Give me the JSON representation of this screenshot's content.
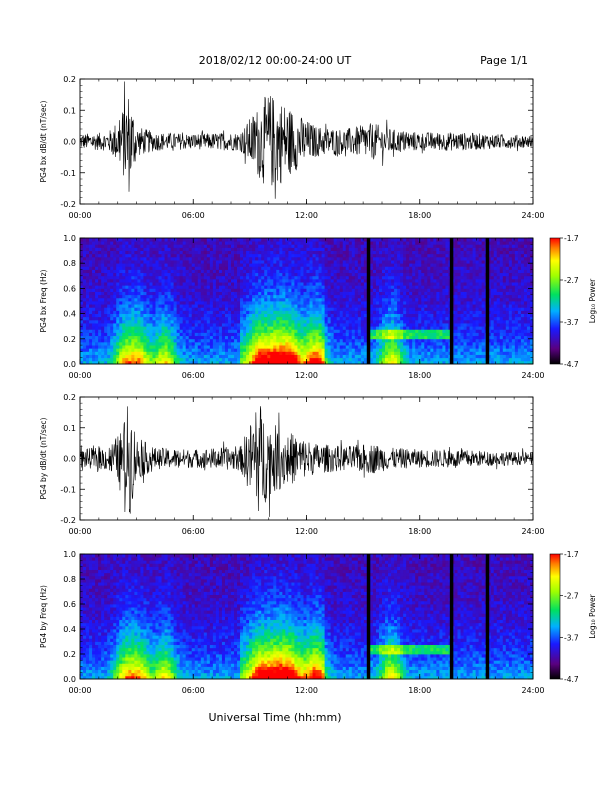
{
  "header": {
    "date_range": "2018/02/12  00:00-24:00 UT",
    "page": "Page 1/1"
  },
  "xaxis": {
    "ticks": [
      "00:00",
      "06:00",
      "12:00",
      "18:00",
      "24:00"
    ],
    "tick_hours": [
      0,
      6,
      12,
      18,
      24
    ],
    "label": "Universal Time (hh:mm)"
  },
  "colorbar": {
    "ticks": [
      "-1.7",
      "-2.7",
      "-3.7",
      "-4.7"
    ],
    "tick_values": [
      -1.7,
      -2.7,
      -3.7,
      -4.7
    ],
    "range": [
      -4.7,
      -1.7
    ],
    "label": "Log₁₀ Power"
  },
  "chart_data": [
    {
      "type": "line",
      "panel": "pg4-bx-waveform",
      "ylabel": "PG4 bx dB/dt (nT/sec)",
      "ylim": [
        -0.2,
        0.2
      ],
      "yticks": [
        0.2,
        0.1,
        0.0,
        -0.1,
        -0.2
      ],
      "ytick_labels": [
        "0.2",
        "0.1",
        "0.0",
        "-0.1",
        "-0.2"
      ],
      "xlim": [
        0,
        24
      ],
      "activity_envelope": [
        {
          "hour": 0.0,
          "amp": 0.025
        },
        {
          "hour": 1.5,
          "amp": 0.03
        },
        {
          "hour": 2.1,
          "amp": 0.08
        },
        {
          "hour": 2.6,
          "amp": 0.17
        },
        {
          "hour": 3.0,
          "amp": 0.05
        },
        {
          "hour": 4.0,
          "amp": 0.03
        },
        {
          "hour": 6.0,
          "amp": 0.025
        },
        {
          "hour": 8.5,
          "amp": 0.03
        },
        {
          "hour": 9.5,
          "amp": 0.12
        },
        {
          "hour": 10.0,
          "amp": 0.16
        },
        {
          "hour": 10.8,
          "amp": 0.13
        },
        {
          "hour": 11.5,
          "amp": 0.09
        },
        {
          "hour": 12.5,
          "amp": 0.05
        },
        {
          "hour": 14.0,
          "amp": 0.04
        },
        {
          "hour": 15.5,
          "amp": 0.06
        },
        {
          "hour": 16.5,
          "amp": 0.04
        },
        {
          "hour": 18.0,
          "amp": 0.03
        },
        {
          "hour": 20.0,
          "amp": 0.03
        },
        {
          "hour": 21.5,
          "amp": 0.025
        },
        {
          "hour": 24.0,
          "amp": 0.02
        }
      ]
    },
    {
      "type": "heatmap",
      "panel": "pg4-bx-spectrogram",
      "ylabel": "PG4 bx Freq (Hz)",
      "ylim": [
        0.0,
        1.0
      ],
      "yticks": [
        1.0,
        0.8,
        0.6,
        0.4,
        0.2,
        0.0
      ],
      "ytick_labels": [
        "1.0",
        "0.8",
        "0.6",
        "0.4",
        "0.2",
        "0.0"
      ],
      "xlim": [
        0,
        24
      ],
      "zlim": [
        -4.7,
        -1.7
      ],
      "data_gaps_hours": [
        15.3,
        19.7,
        21.6
      ]
    },
    {
      "type": "line",
      "panel": "pg4-by-waveform",
      "ylabel": "PG4 by dB/dt (nT/sec)",
      "ylim": [
        -0.2,
        0.2
      ],
      "yticks": [
        0.2,
        0.1,
        0.0,
        -0.1,
        -0.2
      ],
      "ytick_labels": [
        "0.2",
        "0.1",
        "0.0",
        "-0.1",
        "-0.2"
      ],
      "xlim": [
        0,
        24
      ],
      "activity_envelope": [
        {
          "hour": 0.0,
          "amp": 0.03
        },
        {
          "hour": 1.5,
          "amp": 0.04
        },
        {
          "hour": 2.2,
          "amp": 0.09
        },
        {
          "hour": 2.6,
          "amp": 0.2
        },
        {
          "hour": 3.0,
          "amp": 0.07
        },
        {
          "hour": 4.0,
          "amp": 0.035
        },
        {
          "hour": 6.0,
          "amp": 0.03
        },
        {
          "hour": 8.5,
          "amp": 0.04
        },
        {
          "hour": 9.5,
          "amp": 0.19
        },
        {
          "hour": 10.0,
          "amp": 0.12
        },
        {
          "hour": 11.0,
          "amp": 0.09
        },
        {
          "hour": 12.5,
          "amp": 0.05
        },
        {
          "hour": 14.0,
          "amp": 0.04
        },
        {
          "hour": 15.5,
          "amp": 0.05
        },
        {
          "hour": 16.5,
          "amp": 0.035
        },
        {
          "hour": 18.0,
          "amp": 0.03
        },
        {
          "hour": 20.0,
          "amp": 0.03
        },
        {
          "hour": 21.5,
          "amp": 0.025
        },
        {
          "hour": 24.0,
          "amp": 0.02
        }
      ]
    },
    {
      "type": "heatmap",
      "panel": "pg4-by-spectrogram",
      "ylabel": "PG4 by Freq (Hz)",
      "ylim": [
        0.0,
        1.0
      ],
      "yticks": [
        1.0,
        0.8,
        0.6,
        0.4,
        0.2,
        0.0
      ],
      "ytick_labels": [
        "1.0",
        "0.8",
        "0.6",
        "0.4",
        "0.2",
        "0.0"
      ],
      "xlim": [
        0,
        24
      ],
      "zlim": [
        -4.7,
        -1.7
      ],
      "data_gaps_hours": [
        15.3,
        19.7,
        21.6
      ]
    }
  ]
}
